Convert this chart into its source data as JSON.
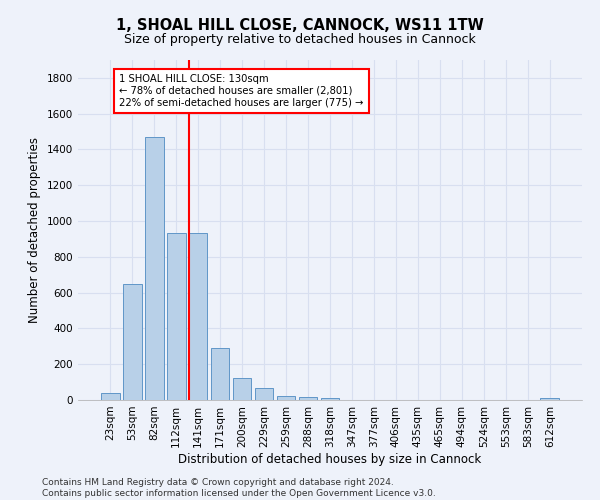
{
  "title1": "1, SHOAL HILL CLOSE, CANNOCK, WS11 1TW",
  "title2": "Size of property relative to detached houses in Cannock",
  "xlabel": "Distribution of detached houses by size in Cannock",
  "ylabel": "Number of detached properties",
  "bar_labels": [
    "23sqm",
    "53sqm",
    "82sqm",
    "112sqm",
    "141sqm",
    "171sqm",
    "200sqm",
    "229sqm",
    "259sqm",
    "288sqm",
    "318sqm",
    "347sqm",
    "377sqm",
    "406sqm",
    "435sqm",
    "465sqm",
    "494sqm",
    "524sqm",
    "553sqm",
    "583sqm",
    "612sqm"
  ],
  "bar_values": [
    40,
    650,
    1470,
    935,
    935,
    290,
    125,
    65,
    25,
    15,
    10,
    0,
    0,
    0,
    0,
    0,
    0,
    0,
    0,
    0,
    10
  ],
  "bar_color": "#b8d0e8",
  "bar_edgecolor": "#6096c8",
  "vline_x": 3.58,
  "vline_color": "red",
  "annotation_text": "1 SHOAL HILL CLOSE: 130sqm\n← 78% of detached houses are smaller (2,801)\n22% of semi-detached houses are larger (775) →",
  "annotation_box_color": "white",
  "annotation_box_edgecolor": "red",
  "ylim": [
    0,
    1900
  ],
  "yticks": [
    0,
    200,
    400,
    600,
    800,
    1000,
    1200,
    1400,
    1600,
    1800
  ],
  "bg_color": "#eef2fa",
  "grid_color": "#d8dff0",
  "footer": "Contains HM Land Registry data © Crown copyright and database right 2024.\nContains public sector information licensed under the Open Government Licence v3.0.",
  "title1_fontsize": 10.5,
  "title2_fontsize": 9,
  "xlabel_fontsize": 8.5,
  "ylabel_fontsize": 8.5,
  "tick_fontsize": 7.5,
  "footer_fontsize": 6.5
}
